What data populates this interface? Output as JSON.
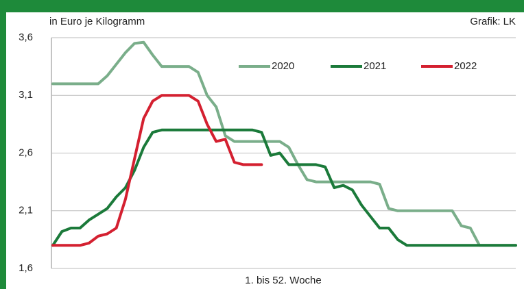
{
  "chart_data": {
    "type": "line",
    "axis_label": "in Euro je Kilogramm",
    "source": "Grafik: LK",
    "x_label": "1. bis 52. Woche",
    "x": [
      1,
      2,
      3,
      4,
      5,
      6,
      7,
      8,
      9,
      10,
      11,
      12,
      13,
      14,
      15,
      16,
      17,
      18,
      19,
      20,
      21,
      22,
      23,
      24,
      25,
      26,
      27,
      28,
      29,
      30,
      31,
      32,
      33,
      34,
      35,
      36,
      37,
      38,
      39,
      40,
      41,
      42,
      43,
      44,
      45,
      46,
      47,
      48,
      49,
      50,
      51,
      52
    ],
    "xlim": [
      1,
      52
    ],
    "ylim": [
      1.6,
      3.6
    ],
    "yticks": [
      {
        "value": 1.6,
        "label": "1,6"
      },
      {
        "value": 2.1,
        "label": "2,1"
      },
      {
        "value": 2.6,
        "label": "2,6"
      },
      {
        "value": 3.1,
        "label": "3,1"
      },
      {
        "value": 3.6,
        "label": "3,6"
      }
    ],
    "grid": true,
    "series": [
      {
        "name": "2020",
        "color": "#7aae8a",
        "values": [
          3.2,
          3.2,
          3.2,
          3.2,
          3.2,
          3.2,
          3.27,
          3.37,
          3.47,
          3.55,
          3.56,
          3.45,
          3.35,
          3.35,
          3.35,
          3.35,
          3.3,
          3.1,
          3.0,
          2.75,
          2.7,
          2.7,
          2.7,
          2.7,
          2.7,
          2.7,
          2.65,
          2.5,
          2.37,
          2.35,
          2.35,
          2.35,
          2.35,
          2.35,
          2.35,
          2.35,
          2.33,
          2.12,
          2.1,
          2.1,
          2.1,
          2.1,
          2.1,
          2.1,
          2.1,
          1.97,
          1.95,
          1.8,
          1.8,
          1.8,
          1.8,
          1.8
        ]
      },
      {
        "name": "2021",
        "color": "#1b7a3a",
        "values": [
          1.8,
          1.92,
          1.95,
          1.95,
          2.02,
          2.07,
          2.12,
          2.22,
          2.3,
          2.45,
          2.65,
          2.78,
          2.8,
          2.8,
          2.8,
          2.8,
          2.8,
          2.8,
          2.8,
          2.8,
          2.8,
          2.8,
          2.8,
          2.78,
          2.58,
          2.6,
          2.5,
          2.5,
          2.5,
          2.5,
          2.48,
          2.3,
          2.32,
          2.28,
          2.15,
          2.05,
          1.95,
          1.95,
          1.85,
          1.8,
          1.8,
          1.8,
          1.8,
          1.8,
          1.8,
          1.8,
          1.8,
          1.8,
          1.8,
          1.8,
          1.8,
          1.8
        ]
      },
      {
        "name": "2022",
        "color": "#d42030",
        "values": [
          1.8,
          1.8,
          1.8,
          1.8,
          1.82,
          1.88,
          1.9,
          1.95,
          2.2,
          2.55,
          2.9,
          3.05,
          3.1,
          3.1,
          3.1,
          3.1,
          3.05,
          2.85,
          2.7,
          2.72,
          2.52,
          2.5,
          2.5,
          2.5,
          null,
          null,
          null,
          null,
          null,
          null,
          null,
          null,
          null,
          null,
          null,
          null,
          null,
          null,
          null,
          null,
          null,
          null,
          null,
          null,
          null,
          null,
          null,
          null,
          null,
          null,
          null,
          null
        ]
      }
    ]
  }
}
